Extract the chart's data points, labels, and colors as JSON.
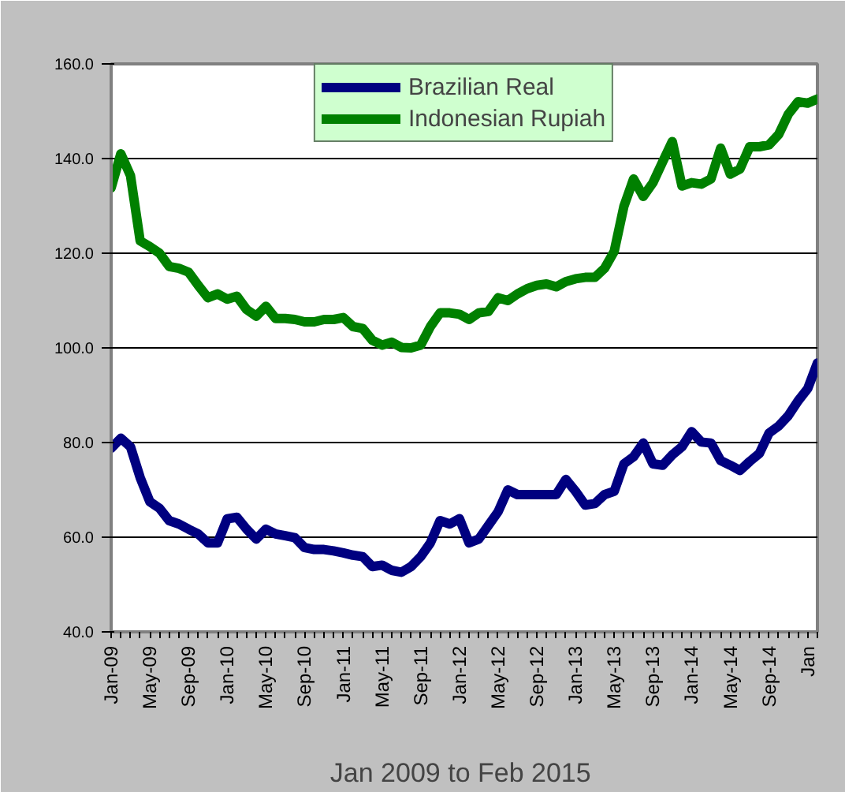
{
  "chart_data": {
    "type": "line",
    "xlabel": "Jan 2009 to  Feb 2015",
    "x": [
      "2009-01",
      "2009-02",
      "2009-03",
      "2009-04",
      "2009-05",
      "2009-06",
      "2009-07",
      "2009-08",
      "2009-09",
      "2009-10",
      "2009-11",
      "2009-12",
      "2010-01",
      "2010-02",
      "2010-03",
      "2010-04",
      "2010-05",
      "2010-06",
      "2010-07",
      "2010-08",
      "2010-09",
      "2010-10",
      "2010-11",
      "2010-12",
      "2011-01",
      "2011-02",
      "2011-03",
      "2011-04",
      "2011-05",
      "2011-06",
      "2011-07",
      "2011-08",
      "2011-09",
      "2011-10",
      "2011-11",
      "2011-12",
      "2012-01",
      "2012-02",
      "2012-03",
      "2012-04",
      "2012-05",
      "2012-06",
      "2012-07",
      "2012-08",
      "2012-09",
      "2012-10",
      "2012-11",
      "2012-12",
      "2013-01",
      "2013-02",
      "2013-03",
      "2013-04",
      "2013-05",
      "2013-06",
      "2013-07",
      "2013-08",
      "2013-09",
      "2013-10",
      "2013-11",
      "2013-12",
      "2014-01",
      "2014-02",
      "2014-03",
      "2014-04",
      "2014-05",
      "2014-06",
      "2014-07",
      "2014-08",
      "2014-09",
      "2014-10",
      "2014-11",
      "2014-12",
      "2015-01",
      "2015-02"
    ],
    "series": [
      {
        "name": "Brazilian Real",
        "color": "#000080",
        "values": [
          78.8,
          80.9,
          79.1,
          72.6,
          67.5,
          66.1,
          63.5,
          62.8,
          61.7,
          60.7,
          58.8,
          58.8,
          63.9,
          64.2,
          61.7,
          59.6,
          61.7,
          60.7,
          60.3,
          59.9,
          57.8,
          57.4,
          57.4,
          57.1,
          56.7,
          56.2,
          55.9,
          53.8,
          54.1,
          53.0,
          52.6,
          53.8,
          55.9,
          58.8,
          63.5,
          62.8,
          63.9,
          58.8,
          59.6,
          62.5,
          65.4,
          70.0,
          69.0,
          69.0,
          69.0,
          69.0,
          69.0,
          72.2,
          69.7,
          66.8,
          67.1,
          69.0,
          69.7,
          75.5,
          77.0,
          79.9,
          75.5,
          75.2,
          77.4,
          79.1,
          82.3,
          80.1,
          79.9,
          76.2,
          75.2,
          74.1,
          76.0,
          77.7,
          82.0,
          83.5,
          85.7,
          88.8,
          91.4,
          96.8
        ]
      },
      {
        "name": "Indonesian Rupiah",
        "color": "#008000",
        "values": [
          133.8,
          141.0,
          136.4,
          122.6,
          121.4,
          120.0,
          117.2,
          116.8,
          116.0,
          113.2,
          110.6,
          111.4,
          110.3,
          110.9,
          108.1,
          106.7,
          108.8,
          106.2,
          106.2,
          106.0,
          105.5,
          105.5,
          106.0,
          106.0,
          106.4,
          104.5,
          104.1,
          101.6,
          100.6,
          101.2,
          100.1,
          100.0,
          100.6,
          104.5,
          107.4,
          107.4,
          107.1,
          106.0,
          107.4,
          107.7,
          110.6,
          110.0,
          111.4,
          112.5,
          113.2,
          113.5,
          112.9,
          114.0,
          114.6,
          114.9,
          114.9,
          116.8,
          120.4,
          129.9,
          135.7,
          132.0,
          134.9,
          139.3,
          143.6,
          134.2,
          134.9,
          134.6,
          135.7,
          142.2,
          136.7,
          137.8,
          142.5,
          142.5,
          142.9,
          145.1,
          149.4,
          152.0,
          151.7,
          152.6
        ]
      }
    ],
    "xlim": [
      "2009-01",
      "2015-02"
    ],
    "xticks": [
      {
        "value": "2009-01",
        "label": "Jan-09"
      },
      {
        "value": "2009-05",
        "label": "May-09"
      },
      {
        "value": "2009-09",
        "label": "Sep-09"
      },
      {
        "value": "2010-01",
        "label": "Jan-10"
      },
      {
        "value": "2010-05",
        "label": "May-10"
      },
      {
        "value": "2010-09",
        "label": "Sep-10"
      },
      {
        "value": "2011-01",
        "label": "Jan-11"
      },
      {
        "value": "2011-05",
        "label": "May-11"
      },
      {
        "value": "2011-09",
        "label": "Sep-11"
      },
      {
        "value": "2012-01",
        "label": "Jan-12"
      },
      {
        "value": "2012-05",
        "label": "May-12"
      },
      {
        "value": "2012-09",
        "label": "Sep-12"
      },
      {
        "value": "2013-01",
        "label": "Jan-13"
      },
      {
        "value": "2013-05",
        "label": "May-13"
      },
      {
        "value": "2013-09",
        "label": "Sep-13"
      },
      {
        "value": "2014-01",
        "label": "Jan-14"
      },
      {
        "value": "2014-05",
        "label": "May-14"
      },
      {
        "value": "2014-09",
        "label": "Sep-14"
      },
      {
        "value": "2015-01",
        "label": "Jan"
      }
    ],
    "ylim": [
      40,
      160
    ],
    "yticks": [
      {
        "value": 40,
        "label": "40.0"
      },
      {
        "value": 60,
        "label": "60.0"
      },
      {
        "value": 80,
        "label": "80.0"
      },
      {
        "value": 100,
        "label": "100.0"
      },
      {
        "value": 120,
        "label": "120.0"
      },
      {
        "value": 140,
        "label": "140.0"
      },
      {
        "value": 160,
        "label": "160.0"
      }
    ],
    "grid": "y",
    "legend": "top",
    "marker": "none",
    "line_style": "solid"
  }
}
